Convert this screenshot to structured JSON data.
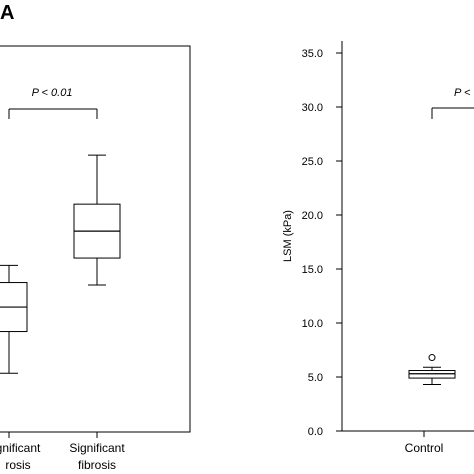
{
  "figure": {
    "panel_label": "A"
  },
  "colors": {
    "axis": "#000000",
    "box_fill": "#ffffff",
    "box_stroke": "#000000",
    "bracket": "#000000",
    "background": "#ffffff"
  },
  "chart_data": [
    {
      "type": "boxplot",
      "title": "",
      "xlabel": "",
      "ylabel": "",
      "categories": [
        "Significant fibrosis"
      ],
      "truncated_category_label": "Significant fibrosis",
      "series": [
        {
          "category": "Non-significant fibrosis (partially visible)",
          "whisker_low": 2.4,
          "q1": 4.1,
          "median": 5.1,
          "q3": 6.1,
          "whisker_high": 6.8
        },
        {
          "category": "Significant fibrosis",
          "whisker_low": 6.0,
          "q1": 7.1,
          "median": 8.2,
          "q3": 9.3,
          "whisker_high": 11.3
        }
      ],
      "annotation": "P < 0.01",
      "grid": false
    },
    {
      "type": "boxplot",
      "title": "",
      "xlabel": "",
      "ylabel": "LSM (kPa)",
      "ylim": [
        0,
        35
      ],
      "yticks": [
        "0.0",
        "5.0",
        "10.0",
        "15.0",
        "20.0",
        "25.0",
        "30.0",
        "35.0"
      ],
      "categories": [
        "Control"
      ],
      "series": [
        {
          "category": "Control",
          "whisker_low": 4.3,
          "q1": 4.9,
          "median": 5.3,
          "q3": 5.6,
          "whisker_high": 5.9,
          "outliers": [
            6.8
          ]
        }
      ],
      "annotation": "P <",
      "grid": false
    }
  ]
}
